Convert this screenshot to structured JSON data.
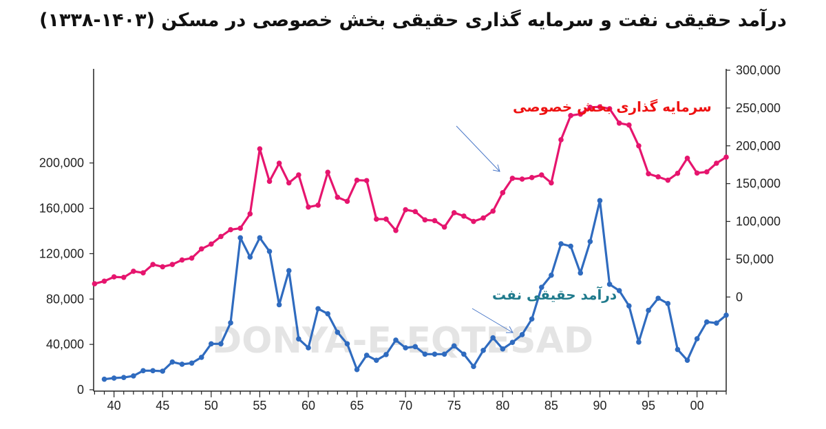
{
  "chart_data": {
    "type": "line",
    "title": "درآمد حقیقی نفت و سرمایه گذاری حقیقی بخش خصوصی در مسکن (۱۴۰۳-۱۳۳۸)",
    "watermark": "DONYA-E-EQTESAD",
    "xlabel": "",
    "ylabel_left": "",
    "ylabel_right": "",
    "x_tick_labels": [
      "40",
      "45",
      "50",
      "55",
      "60",
      "65",
      "70",
      "75",
      "80",
      "85",
      "90",
      "95",
      "00"
    ],
    "x_tick_years": [
      1340,
      1345,
      1350,
      1355,
      1360,
      1365,
      1370,
      1375,
      1380,
      1385,
      1390,
      1395,
      1400
    ],
    "xlim": [
      1337.9,
      1403
    ],
    "left_axis": {
      "ylim": [
        0,
        283000
      ],
      "ticks": [
        0,
        40000,
        80000,
        120000,
        160000,
        200000
      ],
      "tick_labels": [
        "0",
        "40,000",
        "80,000",
        "120,000",
        "160,000",
        "200,000"
      ]
    },
    "right_axis": {
      "ylim": [
        -122700,
        301800
      ],
      "ticks": [
        0,
        50000,
        100000,
        150000,
        200000,
        250000,
        300000
      ],
      "tick_labels": [
        "0",
        "50,000",
        "100,000",
        "150,000",
        "200,000",
        "250,000",
        "300,000"
      ]
    },
    "grid": false,
    "series": [
      {
        "name": "سرمایه گذاری بخش خصوصی",
        "axis": "right",
        "color": "#e6156e",
        "label_color": "#ee1111",
        "x": [
          1338,
          1339,
          1340,
          1341,
          1342,
          1343,
          1344,
          1345,
          1346,
          1347,
          1348,
          1349,
          1350,
          1351,
          1352,
          1353,
          1354,
          1355,
          1356,
          1357,
          1358,
          1359,
          1360,
          1361,
          1362,
          1363,
          1364,
          1365,
          1366,
          1367,
          1368,
          1369,
          1370,
          1371,
          1372,
          1373,
          1374,
          1375,
          1376,
          1377,
          1378,
          1379,
          1380,
          1381,
          1382,
          1383,
          1384,
          1385,
          1386,
          1387,
          1388,
          1389,
          1390,
          1391,
          1392,
          1393,
          1394,
          1395,
          1396,
          1397,
          1398,
          1399,
          1400,
          1401,
          1402,
          1403
        ],
        "values": [
          17500,
          21000,
          26600,
          26000,
          34000,
          32000,
          43000,
          40000,
          43000,
          49000,
          51500,
          63600,
          70000,
          80000,
          89000,
          91000,
          110000,
          196000,
          153000,
          177000,
          151000,
          161500,
          119000,
          121500,
          165000,
          132000,
          126600,
          154500,
          154000,
          103000,
          103000,
          88000,
          115500,
          113000,
          102000,
          101000,
          92500,
          111500,
          107000,
          100000,
          104500,
          113600,
          138000,
          157000,
          156000,
          158000,
          161500,
          151000,
          208000,
          240000,
          242000,
          251000,
          251500,
          249000,
          230000,
          227500,
          200000,
          163000,
          159000,
          154500,
          163600,
          183600,
          164000,
          165500,
          177000,
          185000
        ]
      },
      {
        "name": "درآمد حقیقی نفت",
        "axis": "left",
        "color": "#2f6bbf",
        "label_color": "#1f7a8c",
        "x": [
          1339,
          1340,
          1341,
          1342,
          1343,
          1344,
          1345,
          1346,
          1347,
          1348,
          1349,
          1350,
          1351,
          1352,
          1353,
          1354,
          1355,
          1356,
          1357,
          1358,
          1359,
          1360,
          1361,
          1362,
          1363,
          1364,
          1365,
          1366,
          1367,
          1368,
          1369,
          1370,
          1371,
          1372,
          1373,
          1374,
          1375,
          1376,
          1377,
          1378,
          1379,
          1380,
          1381,
          1382,
          1383,
          1384,
          1385,
          1386,
          1387,
          1388,
          1389,
          1390,
          1391,
          1392,
          1393,
          1394,
          1395,
          1396,
          1397,
          1398,
          1399,
          1400,
          1401,
          1402,
          1403
        ],
        "values": [
          9300,
          10300,
          10800,
          12200,
          16800,
          16800,
          16400,
          24500,
          22500,
          23500,
          28600,
          40500,
          40500,
          59000,
          134000,
          117000,
          134000,
          122000,
          75000,
          105000,
          44800,
          37000,
          71500,
          67000,
          50700,
          40500,
          17800,
          30400,
          26000,
          31000,
          43800,
          37000,
          38000,
          31400,
          31400,
          31400,
          38700,
          31400,
          20500,
          34700,
          45800,
          36000,
          41800,
          48600,
          62400,
          90400,
          101000,
          128700,
          126600,
          103000,
          130700,
          166800,
          93000,
          87400,
          74000,
          42000,
          70000,
          80700,
          76000,
          35500,
          26000,
          45000,
          59800,
          58800,
          65800
        ]
      }
    ]
  }
}
